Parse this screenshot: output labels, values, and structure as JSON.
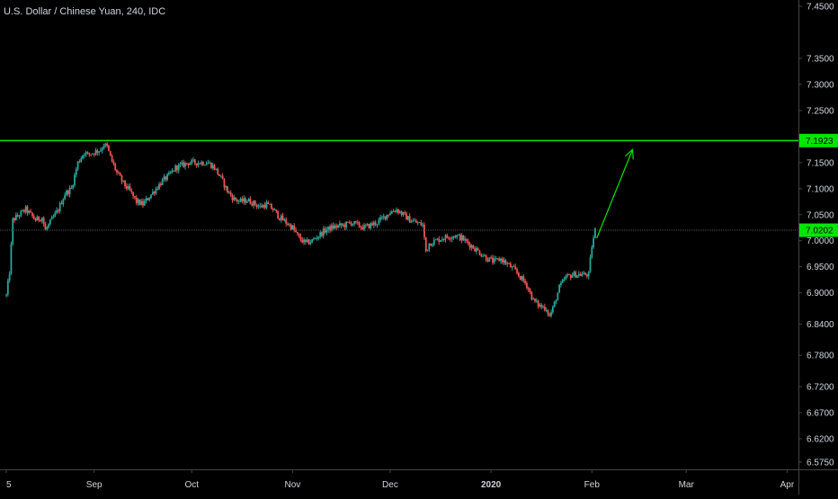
{
  "chart_data": {
    "type": "candlestick",
    "title": "U.S. Dollar / Chinese Yuan, 240, IDC",
    "y_axis": {
      "position": "right",
      "ylim": [
        6.54,
        7.465
      ],
      "ticks": [
        "7.4500",
        "7.3500",
        "7.3000",
        "7.2500",
        "7.1500",
        "7.1000",
        "7.0500",
        "7.0000",
        "6.9500",
        "6.9000",
        "6.8400",
        "6.7800",
        "6.7200",
        "6.6700",
        "6.6200",
        "6.5750"
      ]
    },
    "x_axis": {
      "range_days": [
        0,
        241
      ],
      "ticks": [
        {
          "label": "5",
          "day": 0,
          "bold": false
        },
        {
          "label": "Sep",
          "day": 27,
          "bold": false
        },
        {
          "label": "Oct",
          "day": 57,
          "bold": false
        },
        {
          "label": "Nov",
          "day": 88,
          "bold": false
        },
        {
          "label": "Dec",
          "day": 118,
          "bold": false
        },
        {
          "label": "2020",
          "day": 149,
          "bold": true
        },
        {
          "label": "Feb",
          "day": 180,
          "bold": false
        },
        {
          "label": "Mar",
          "day": 209,
          "bold": false
        },
        {
          "label": "Apr",
          "day": 240,
          "bold": false
        }
      ]
    },
    "price_path": [
      [
        0,
        6.895
      ],
      [
        1,
        6.94
      ],
      [
        2,
        7.04
      ],
      [
        4,
        7.05
      ],
      [
        6,
        7.06
      ],
      [
        9,
        7.04
      ],
      [
        11,
        7.045
      ],
      [
        12,
        7.02
      ],
      [
        14,
        7.04
      ],
      [
        16,
        7.06
      ],
      [
        18,
        7.09
      ],
      [
        20,
        7.1
      ],
      [
        22,
        7.15
      ],
      [
        23,
        7.16
      ],
      [
        24,
        7.17
      ],
      [
        25,
        7.165
      ],
      [
        27,
        7.17
      ],
      [
        29,
        7.175
      ],
      [
        30,
        7.185
      ],
      [
        31,
        7.18
      ],
      [
        32,
        7.16
      ],
      [
        34,
        7.13
      ],
      [
        36,
        7.11
      ],
      [
        38,
        7.095
      ],
      [
        40,
        7.075
      ],
      [
        42,
        7.07
      ],
      [
        44,
        7.085
      ],
      [
        46,
        7.1
      ],
      [
        48,
        7.115
      ],
      [
        50,
        7.125
      ],
      [
        52,
        7.14
      ],
      [
        54,
        7.145
      ],
      [
        56,
        7.15
      ],
      [
        60,
        7.15
      ],
      [
        62,
        7.15
      ],
      [
        64,
        7.14
      ],
      [
        66,
        7.12
      ],
      [
        68,
        7.095
      ],
      [
        70,
        7.08
      ],
      [
        72,
        7.075
      ],
      [
        74,
        7.078
      ],
      [
        76,
        7.072
      ],
      [
        78,
        7.065
      ],
      [
        80,
        7.07
      ],
      [
        82,
        7.06
      ],
      [
        84,
        7.045
      ],
      [
        86,
        7.035
      ],
      [
        88,
        7.025
      ],
      [
        90,
        7.005
      ],
      [
        92,
        6.995
      ],
      [
        94,
        7.0
      ],
      [
        96,
        7.01
      ],
      [
        98,
        7.02
      ],
      [
        100,
        7.025
      ],
      [
        102,
        7.028
      ],
      [
        104,
        7.03
      ],
      [
        106,
        7.035
      ],
      [
        108,
        7.03
      ],
      [
        110,
        7.025
      ],
      [
        112,
        7.03
      ],
      [
        114,
        7.035
      ],
      [
        116,
        7.045
      ],
      [
        118,
        7.055
      ],
      [
        120,
        7.06
      ],
      [
        122,
        7.05
      ],
      [
        124,
        7.04
      ],
      [
        126,
        7.035
      ],
      [
        128,
        7.03
      ],
      [
        129,
        6.98
      ],
      [
        130,
        6.995
      ],
      [
        132,
        7.0
      ],
      [
        134,
        7.005
      ],
      [
        136,
        7.008
      ],
      [
        138,
        7.01
      ],
      [
        140,
        7.005
      ],
      [
        142,
        6.995
      ],
      [
        144,
        6.985
      ],
      [
        146,
        6.975
      ],
      [
        148,
        6.965
      ],
      [
        150,
        6.96
      ],
      [
        152,
        6.965
      ],
      [
        154,
        6.955
      ],
      [
        156,
        6.945
      ],
      [
        158,
        6.93
      ],
      [
        160,
        6.915
      ],
      [
        162,
        6.885
      ],
      [
        164,
        6.875
      ],
      [
        166,
        6.87
      ],
      [
        167,
        6.855
      ],
      [
        168,
        6.87
      ],
      [
        170,
        6.91
      ],
      [
        172,
        6.93
      ],
      [
        174,
        6.935
      ],
      [
        176,
        6.935
      ],
      [
        178,
        6.935
      ],
      [
        179,
        6.935
      ],
      [
        180,
        6.99
      ],
      [
        181,
        7.0202
      ]
    ],
    "last_price": "7.0202",
    "resistance_level": "7.1923",
    "projection_arrow": {
      "from": [
        181.5,
        7.005
      ],
      "to": [
        192.5,
        7.175
      ]
    },
    "colors": {
      "background": "#000000",
      "up_candle": "#26a69a",
      "down_candle": "#ef5350",
      "resistance_line": "#00e600",
      "arrow": "#00e600",
      "last_price_tag": "#00e600",
      "price_line": "#555555",
      "axis_text": "#d1d4dc",
      "axis_line": "#444444"
    }
  }
}
